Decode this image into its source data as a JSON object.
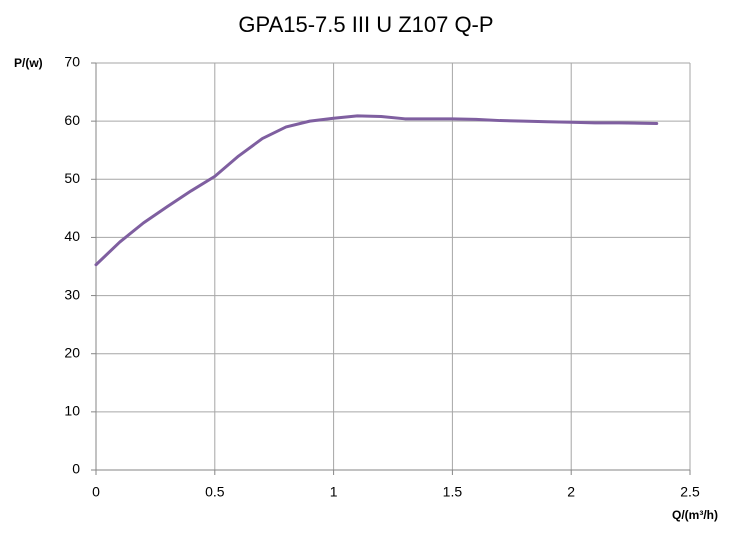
{
  "chart_data": {
    "type": "line",
    "title": "GPA15-7.5 III U Z107 Q-P",
    "y_label": "P/(w)",
    "x_label": "Q/(m³/h)",
    "x": [
      0,
      0.1,
      0.2,
      0.3,
      0.4,
      0.5,
      0.6,
      0.7,
      0.8,
      0.9,
      1.0,
      1.1,
      1.2,
      1.3,
      1.4,
      1.5,
      1.6,
      1.7,
      1.8,
      1.9,
      2.0,
      2.1,
      2.2,
      2.36
    ],
    "series": [
      {
        "name": "Q-P",
        "color": "#7f5fa0",
        "values": [
          35.3,
          39.2,
          42.5,
          45.3,
          48,
          50.5,
          54,
          57,
          59,
          60,
          60.5,
          60.9,
          60.8,
          60.4,
          60.4,
          60.4,
          60.3,
          60.1,
          60,
          59.9,
          59.8,
          59.7,
          59.7,
          59.6
        ]
      }
    ],
    "xlim": [
      0,
      2.5
    ],
    "xticks": [
      0,
      0.5,
      1,
      1.5,
      2,
      2.5
    ],
    "ylim": [
      0,
      70
    ],
    "yticks": [
      0,
      10,
      20,
      30,
      40,
      50,
      60,
      70
    ],
    "grid": true
  }
}
